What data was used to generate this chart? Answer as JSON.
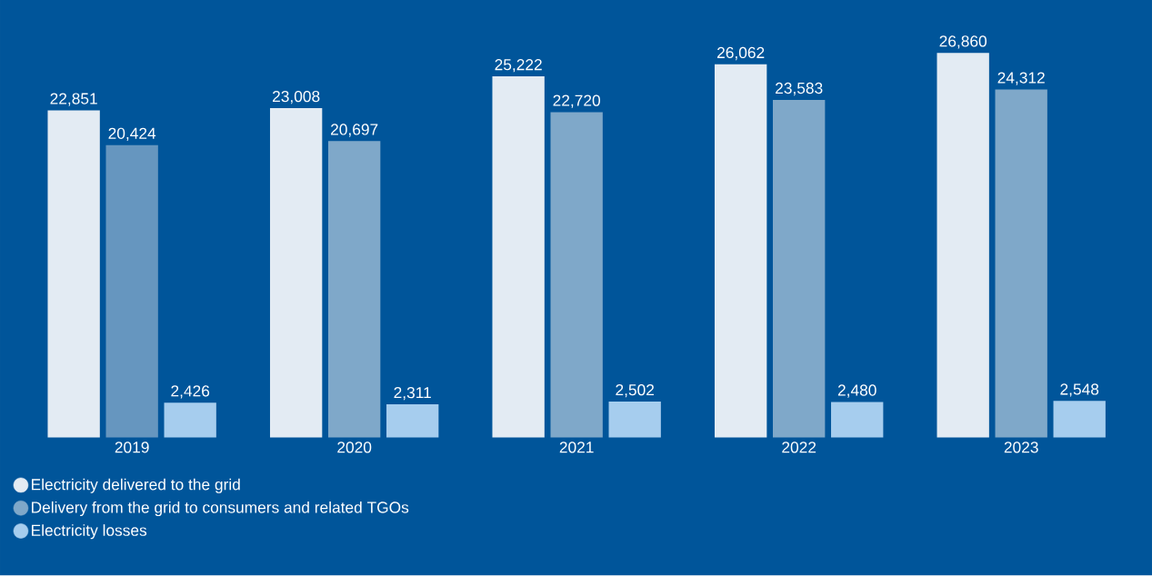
{
  "chart_data": {
    "type": "bar",
    "categories": [
      "2019",
      "2020",
      "2021",
      "2022",
      "2023"
    ],
    "series": [
      {
        "name": "Electricity delivered to the grid",
        "color": "#e3ebf3",
        "values": [
          22851,
          23008,
          25222,
          26062,
          26860
        ],
        "value_labels": [
          "22,851",
          "23,008",
          "25,222",
          "26,062",
          "26,860"
        ]
      },
      {
        "name": "Delivery from the grid to consumers and related TGOs",
        "color": "#7fa8c9",
        "colors": [
          "#6696bf",
          "#7fa8c9",
          "#7fa8c9",
          "#7fa8c9",
          "#7fa8c9"
        ],
        "values": [
          20424,
          20697,
          22720,
          23583,
          24312
        ],
        "value_labels": [
          "20,424",
          "20,697",
          "22,720",
          "23,583",
          "24,312"
        ]
      },
      {
        "name": "Electricity losses",
        "color": "#a6cdee",
        "values": [
          2426,
          2311,
          2502,
          2480,
          2548
        ],
        "value_labels": [
          "2,426",
          "2,311",
          "2,502",
          "2,480",
          "2,548"
        ]
      }
    ],
    "legend": "bottom left",
    "grid": false
  }
}
